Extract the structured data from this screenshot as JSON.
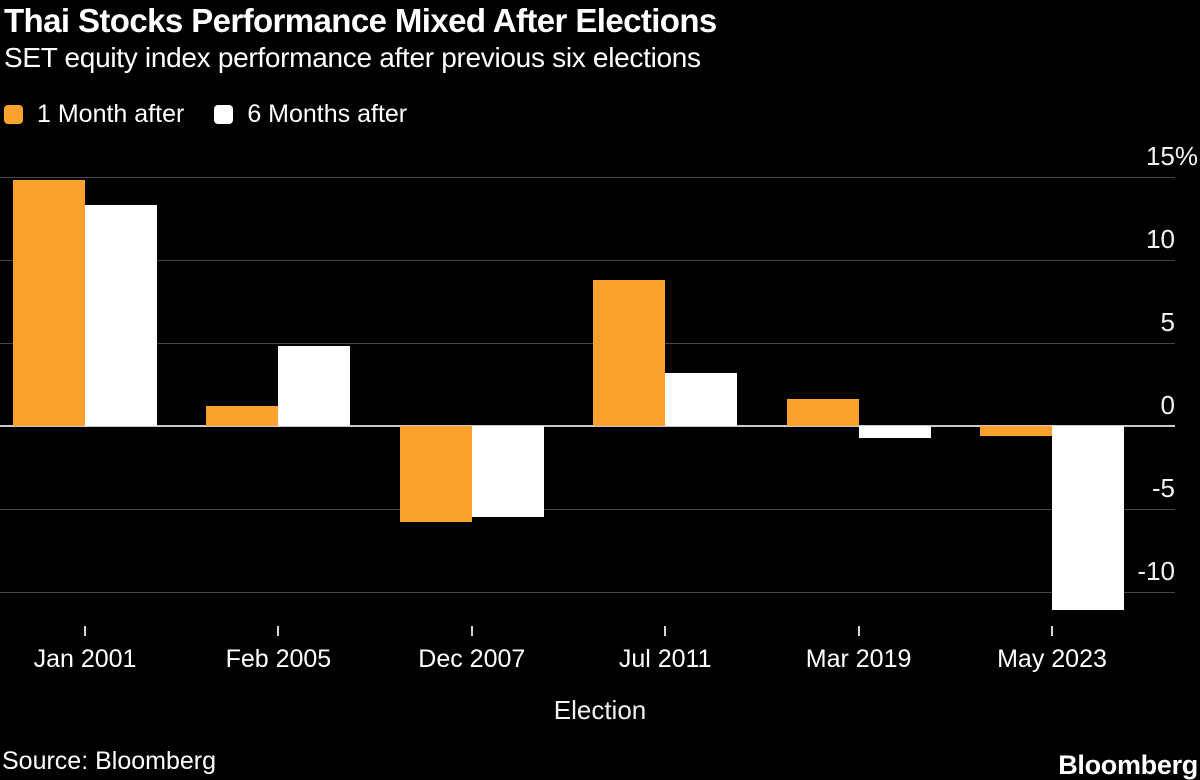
{
  "header": {
    "title": "Thai Stocks Performance Mixed After Elections",
    "subtitle": "SET equity index performance after previous six elections"
  },
  "legend": {
    "items": [
      {
        "label": "1 Month after",
        "color": "#FAA22D"
      },
      {
        "label": "6 Months after",
        "color": "#FFFFFF"
      }
    ]
  },
  "chart_data": {
    "type": "bar",
    "title": "Thai Stocks Performance Mixed After Elections",
    "subtitle": "SET equity index performance after previous six elections",
    "categories": [
      "Jan 2001",
      "Feb 2005",
      "Dec 2007",
      "Jul 2011",
      "Mar 2019",
      "May 2023"
    ],
    "series": [
      {
        "name": "1 Month after",
        "color": "#FAA22D",
        "values": [
          14.8,
          1.2,
          -5.8,
          8.8,
          1.6,
          -0.6
        ]
      },
      {
        "name": "6 Months after",
        "color": "#FFFFFF",
        "values": [
          13.3,
          4.8,
          -5.5,
          3.2,
          -0.7,
          -11.1
        ]
      }
    ],
    "xlabel": "Election",
    "ylabel": "%",
    "ylim": [
      -12,
      15.5
    ],
    "y_ticks": [
      {
        "value": 15,
        "label": "15%"
      },
      {
        "value": 10,
        "label": "10"
      },
      {
        "value": 5,
        "label": "5"
      },
      {
        "value": 0,
        "label": "0"
      },
      {
        "value": -5,
        "label": "-5"
      },
      {
        "value": -10,
        "label": "-10"
      }
    ],
    "grid": true,
    "legend_position": "top-left"
  },
  "footer": {
    "source": "Source: Bloomberg",
    "brand": "Bloomberg"
  },
  "colors": {
    "background": "#000000",
    "text": "#FFFFFF",
    "gridline": "#474747",
    "zero_line": "#C9C9C9",
    "tick": "#D6D6D6",
    "accent_orange": "#FAA22D",
    "bar_white": "#FFFFFF"
  }
}
